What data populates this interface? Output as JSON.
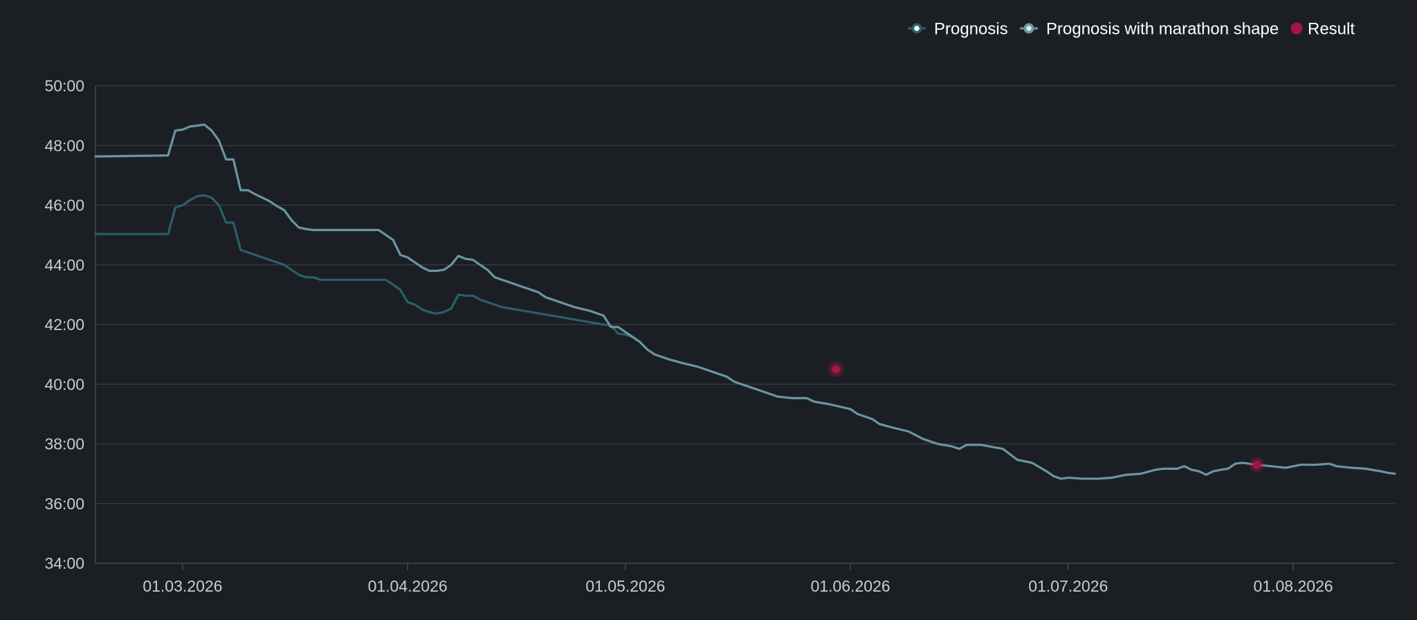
{
  "colors": {
    "background": "#1b1f23",
    "grid": "#3a3f45",
    "axis": "#4a5056",
    "tick_text": "#c9cdd2",
    "legend_text": "#ffffff",
    "prognosis": "#2a5f6b",
    "prognosis_marathon": "#6b95a3",
    "result": "#a3173f"
  },
  "chart_data": {
    "type": "line",
    "title": "",
    "xlabel": "",
    "ylabel": "",
    "x_domain": [
      "2026-02-17",
      "2026-08-15"
    ],
    "ylim": [
      "34:00",
      "50:00"
    ],
    "y_ticks": [
      "34:00",
      "36:00",
      "38:00",
      "40:00",
      "42:00",
      "44:00",
      "46:00",
      "48:00",
      "50:00"
    ],
    "x_ticks": [
      {
        "date": "2026-03-01",
        "label": "01.03.2026"
      },
      {
        "date": "2026-04-01",
        "label": "01.04.2026"
      },
      {
        "date": "2026-05-01",
        "label": "01.05.2026"
      },
      {
        "date": "2026-06-01",
        "label": "01.06.2026"
      },
      {
        "date": "2026-07-01",
        "label": "01.07.2026"
      },
      {
        "date": "2026-08-01",
        "label": "01.08.2026"
      }
    ],
    "grid": true,
    "legend_position": "top-right",
    "series": [
      {
        "name": "Prognosis",
        "kind": "line",
        "color": "#2a5f6b",
        "points": [
          [
            "2026-02-17",
            "45:02"
          ],
          [
            "2026-02-27",
            "45:02"
          ],
          [
            "2026-02-28",
            "45:55"
          ],
          [
            "2026-03-01",
            "46:00"
          ],
          [
            "2026-03-02",
            "46:10"
          ],
          [
            "2026-03-03",
            "46:18"
          ],
          [
            "2026-03-04",
            "46:20"
          ],
          [
            "2026-03-05",
            "46:15"
          ],
          [
            "2026-03-06",
            "46:00"
          ],
          [
            "2026-03-07",
            "45:25"
          ],
          [
            "2026-03-08",
            "45:25"
          ],
          [
            "2026-03-09",
            "44:30"
          ],
          [
            "2026-03-12",
            "44:15"
          ],
          [
            "2026-03-15",
            "44:00"
          ],
          [
            "2026-03-17",
            "43:40"
          ],
          [
            "2026-03-18",
            "43:35"
          ],
          [
            "2026-03-19",
            "43:35"
          ],
          [
            "2026-03-20",
            "43:30"
          ],
          [
            "2026-03-29",
            "43:30"
          ],
          [
            "2026-03-30",
            "43:20"
          ],
          [
            "2026-03-31",
            "43:10"
          ],
          [
            "2026-04-01",
            "42:45"
          ],
          [
            "2026-04-02",
            "42:40"
          ],
          [
            "2026-04-03",
            "42:30"
          ],
          [
            "2026-04-04",
            "42:25"
          ],
          [
            "2026-04-05",
            "42:22"
          ],
          [
            "2026-04-06",
            "42:25"
          ],
          [
            "2026-04-07",
            "42:32"
          ],
          [
            "2026-04-08",
            "43:00"
          ],
          [
            "2026-04-09",
            "42:58"
          ],
          [
            "2026-04-10",
            "42:58"
          ],
          [
            "2026-04-11",
            "42:50"
          ],
          [
            "2026-04-13",
            "42:40"
          ],
          [
            "2026-04-14",
            "42:35"
          ],
          [
            "2026-04-16",
            "42:30"
          ],
          [
            "2026-04-18",
            "42:25"
          ],
          [
            "2026-04-20",
            "42:20"
          ],
          [
            "2026-04-22",
            "42:15"
          ],
          [
            "2026-04-24",
            "42:10"
          ],
          [
            "2026-04-26",
            "42:05"
          ],
          [
            "2026-04-28",
            "42:00"
          ],
          [
            "2026-04-29",
            "41:58"
          ],
          [
            "2026-04-30",
            "41:42"
          ],
          [
            "2026-05-01",
            "41:40"
          ],
          [
            "2026-05-02",
            "41:35"
          ],
          [
            "2026-05-03",
            "41:25"
          ]
        ]
      },
      {
        "name": "Prognosis with marathon shape",
        "kind": "line",
        "color": "#6b95a3",
        "points": [
          [
            "2026-02-17",
            "47:38"
          ],
          [
            "2026-02-27",
            "47:40"
          ],
          [
            "2026-02-28",
            "48:30"
          ],
          [
            "2026-03-01",
            "48:32"
          ],
          [
            "2026-03-02",
            "48:38"
          ],
          [
            "2026-03-03",
            "48:40"
          ],
          [
            "2026-03-04",
            "48:42"
          ],
          [
            "2026-03-05",
            "48:30"
          ],
          [
            "2026-03-06",
            "48:10"
          ],
          [
            "2026-03-07",
            "47:32"
          ],
          [
            "2026-03-08",
            "47:32"
          ],
          [
            "2026-03-09",
            "46:30"
          ],
          [
            "2026-03-10",
            "46:30"
          ],
          [
            "2026-03-11",
            "46:22"
          ],
          [
            "2026-03-12",
            "46:15"
          ],
          [
            "2026-03-13",
            "46:08"
          ],
          [
            "2026-03-14",
            "45:58"
          ],
          [
            "2026-03-15",
            "45:50"
          ],
          [
            "2026-03-16",
            "45:30"
          ],
          [
            "2026-03-17",
            "45:15"
          ],
          [
            "2026-03-18",
            "45:12"
          ],
          [
            "2026-03-19",
            "45:10"
          ],
          [
            "2026-03-28",
            "45:10"
          ],
          [
            "2026-03-29",
            "45:00"
          ],
          [
            "2026-03-30",
            "44:50"
          ],
          [
            "2026-03-31",
            "44:20"
          ],
          [
            "2026-04-01",
            "44:15"
          ],
          [
            "2026-04-02",
            "44:05"
          ],
          [
            "2026-04-03",
            "43:55"
          ],
          [
            "2026-04-04",
            "43:48"
          ],
          [
            "2026-04-05",
            "43:48"
          ],
          [
            "2026-04-06",
            "43:50"
          ],
          [
            "2026-04-07",
            "44:00"
          ],
          [
            "2026-04-08",
            "44:18"
          ],
          [
            "2026-04-09",
            "44:12"
          ],
          [
            "2026-04-10",
            "44:10"
          ],
          [
            "2026-04-11",
            "44:00"
          ],
          [
            "2026-04-12",
            "43:50"
          ],
          [
            "2026-04-13",
            "43:35"
          ],
          [
            "2026-04-15",
            "43:25"
          ],
          [
            "2026-04-17",
            "43:15"
          ],
          [
            "2026-04-19",
            "43:05"
          ],
          [
            "2026-04-20",
            "42:55"
          ],
          [
            "2026-04-22",
            "42:45"
          ],
          [
            "2026-04-24",
            "42:35"
          ],
          [
            "2026-04-26",
            "42:28"
          ],
          [
            "2026-04-28",
            "42:18"
          ],
          [
            "2026-04-29",
            "41:55"
          ],
          [
            "2026-04-30",
            "41:55"
          ],
          [
            "2026-05-01",
            "41:45"
          ],
          [
            "2026-05-02",
            "41:35"
          ],
          [
            "2026-05-03",
            "41:25"
          ],
          [
            "2026-05-04",
            "41:10"
          ],
          [
            "2026-05-05",
            "41:00"
          ],
          [
            "2026-05-07",
            "40:50"
          ],
          [
            "2026-05-09",
            "40:42"
          ],
          [
            "2026-05-11",
            "40:35"
          ],
          [
            "2026-05-13",
            "40:25"
          ],
          [
            "2026-05-15",
            "40:15"
          ],
          [
            "2026-05-16",
            "40:05"
          ],
          [
            "2026-05-18",
            "39:55"
          ],
          [
            "2026-05-20",
            "39:45"
          ],
          [
            "2026-05-22",
            "39:35"
          ],
          [
            "2026-05-24",
            "39:32"
          ],
          [
            "2026-05-26",
            "39:32"
          ],
          [
            "2026-05-27",
            "39:25"
          ],
          [
            "2026-05-29",
            "39:20"
          ],
          [
            "2026-06-01",
            "39:10"
          ],
          [
            "2026-06-02",
            "39:00"
          ],
          [
            "2026-06-04",
            "38:50"
          ],
          [
            "2026-06-05",
            "38:40"
          ],
          [
            "2026-06-07",
            "38:32"
          ],
          [
            "2026-06-09",
            "38:25"
          ],
          [
            "2026-06-11",
            "38:10"
          ],
          [
            "2026-06-13",
            "38:00"
          ],
          [
            "2026-06-15",
            "37:55"
          ],
          [
            "2026-06-16",
            "37:50"
          ],
          [
            "2026-06-17",
            "37:58"
          ],
          [
            "2026-06-19",
            "37:58"
          ],
          [
            "2026-06-22",
            "37:50"
          ],
          [
            "2026-06-24",
            "37:28"
          ],
          [
            "2026-06-26",
            "37:22"
          ],
          [
            "2026-06-28",
            "37:05"
          ],
          [
            "2026-06-29",
            "36:55"
          ],
          [
            "2026-06-30",
            "36:50"
          ],
          [
            "2026-07-01",
            "36:52"
          ],
          [
            "2026-07-03",
            "36:50"
          ],
          [
            "2026-07-05",
            "36:50"
          ],
          [
            "2026-07-07",
            "36:52"
          ],
          [
            "2026-07-09",
            "36:58"
          ],
          [
            "2026-07-11",
            "37:00"
          ],
          [
            "2026-07-13",
            "37:08"
          ],
          [
            "2026-07-14",
            "37:10"
          ],
          [
            "2026-07-16",
            "37:10"
          ],
          [
            "2026-07-17",
            "37:15"
          ],
          [
            "2026-07-18",
            "37:08"
          ],
          [
            "2026-07-19",
            "37:05"
          ],
          [
            "2026-07-20",
            "36:58"
          ],
          [
            "2026-07-21",
            "37:05"
          ],
          [
            "2026-07-22",
            "37:08"
          ],
          [
            "2026-07-23",
            "37:10"
          ],
          [
            "2026-07-24",
            "37:20"
          ],
          [
            "2026-07-25",
            "37:22"
          ],
          [
            "2026-07-27",
            "37:18"
          ],
          [
            "2026-07-29",
            "37:15"
          ],
          [
            "2026-07-31",
            "37:12"
          ],
          [
            "2026-08-02",
            "37:18"
          ],
          [
            "2026-08-04",
            "37:18"
          ],
          [
            "2026-08-06",
            "37:20"
          ],
          [
            "2026-08-07",
            "37:15"
          ],
          [
            "2026-08-09",
            "37:12"
          ],
          [
            "2026-08-11",
            "37:10"
          ],
          [
            "2026-08-13",
            "37:05"
          ],
          [
            "2026-08-14",
            "37:02"
          ],
          [
            "2026-08-15",
            "37:00"
          ]
        ]
      },
      {
        "name": "Result",
        "kind": "scatter",
        "color": "#a3173f",
        "points": [
          [
            "2026-05-30",
            "40:30"
          ],
          [
            "2026-07-27",
            "37:18"
          ]
        ]
      }
    ]
  }
}
